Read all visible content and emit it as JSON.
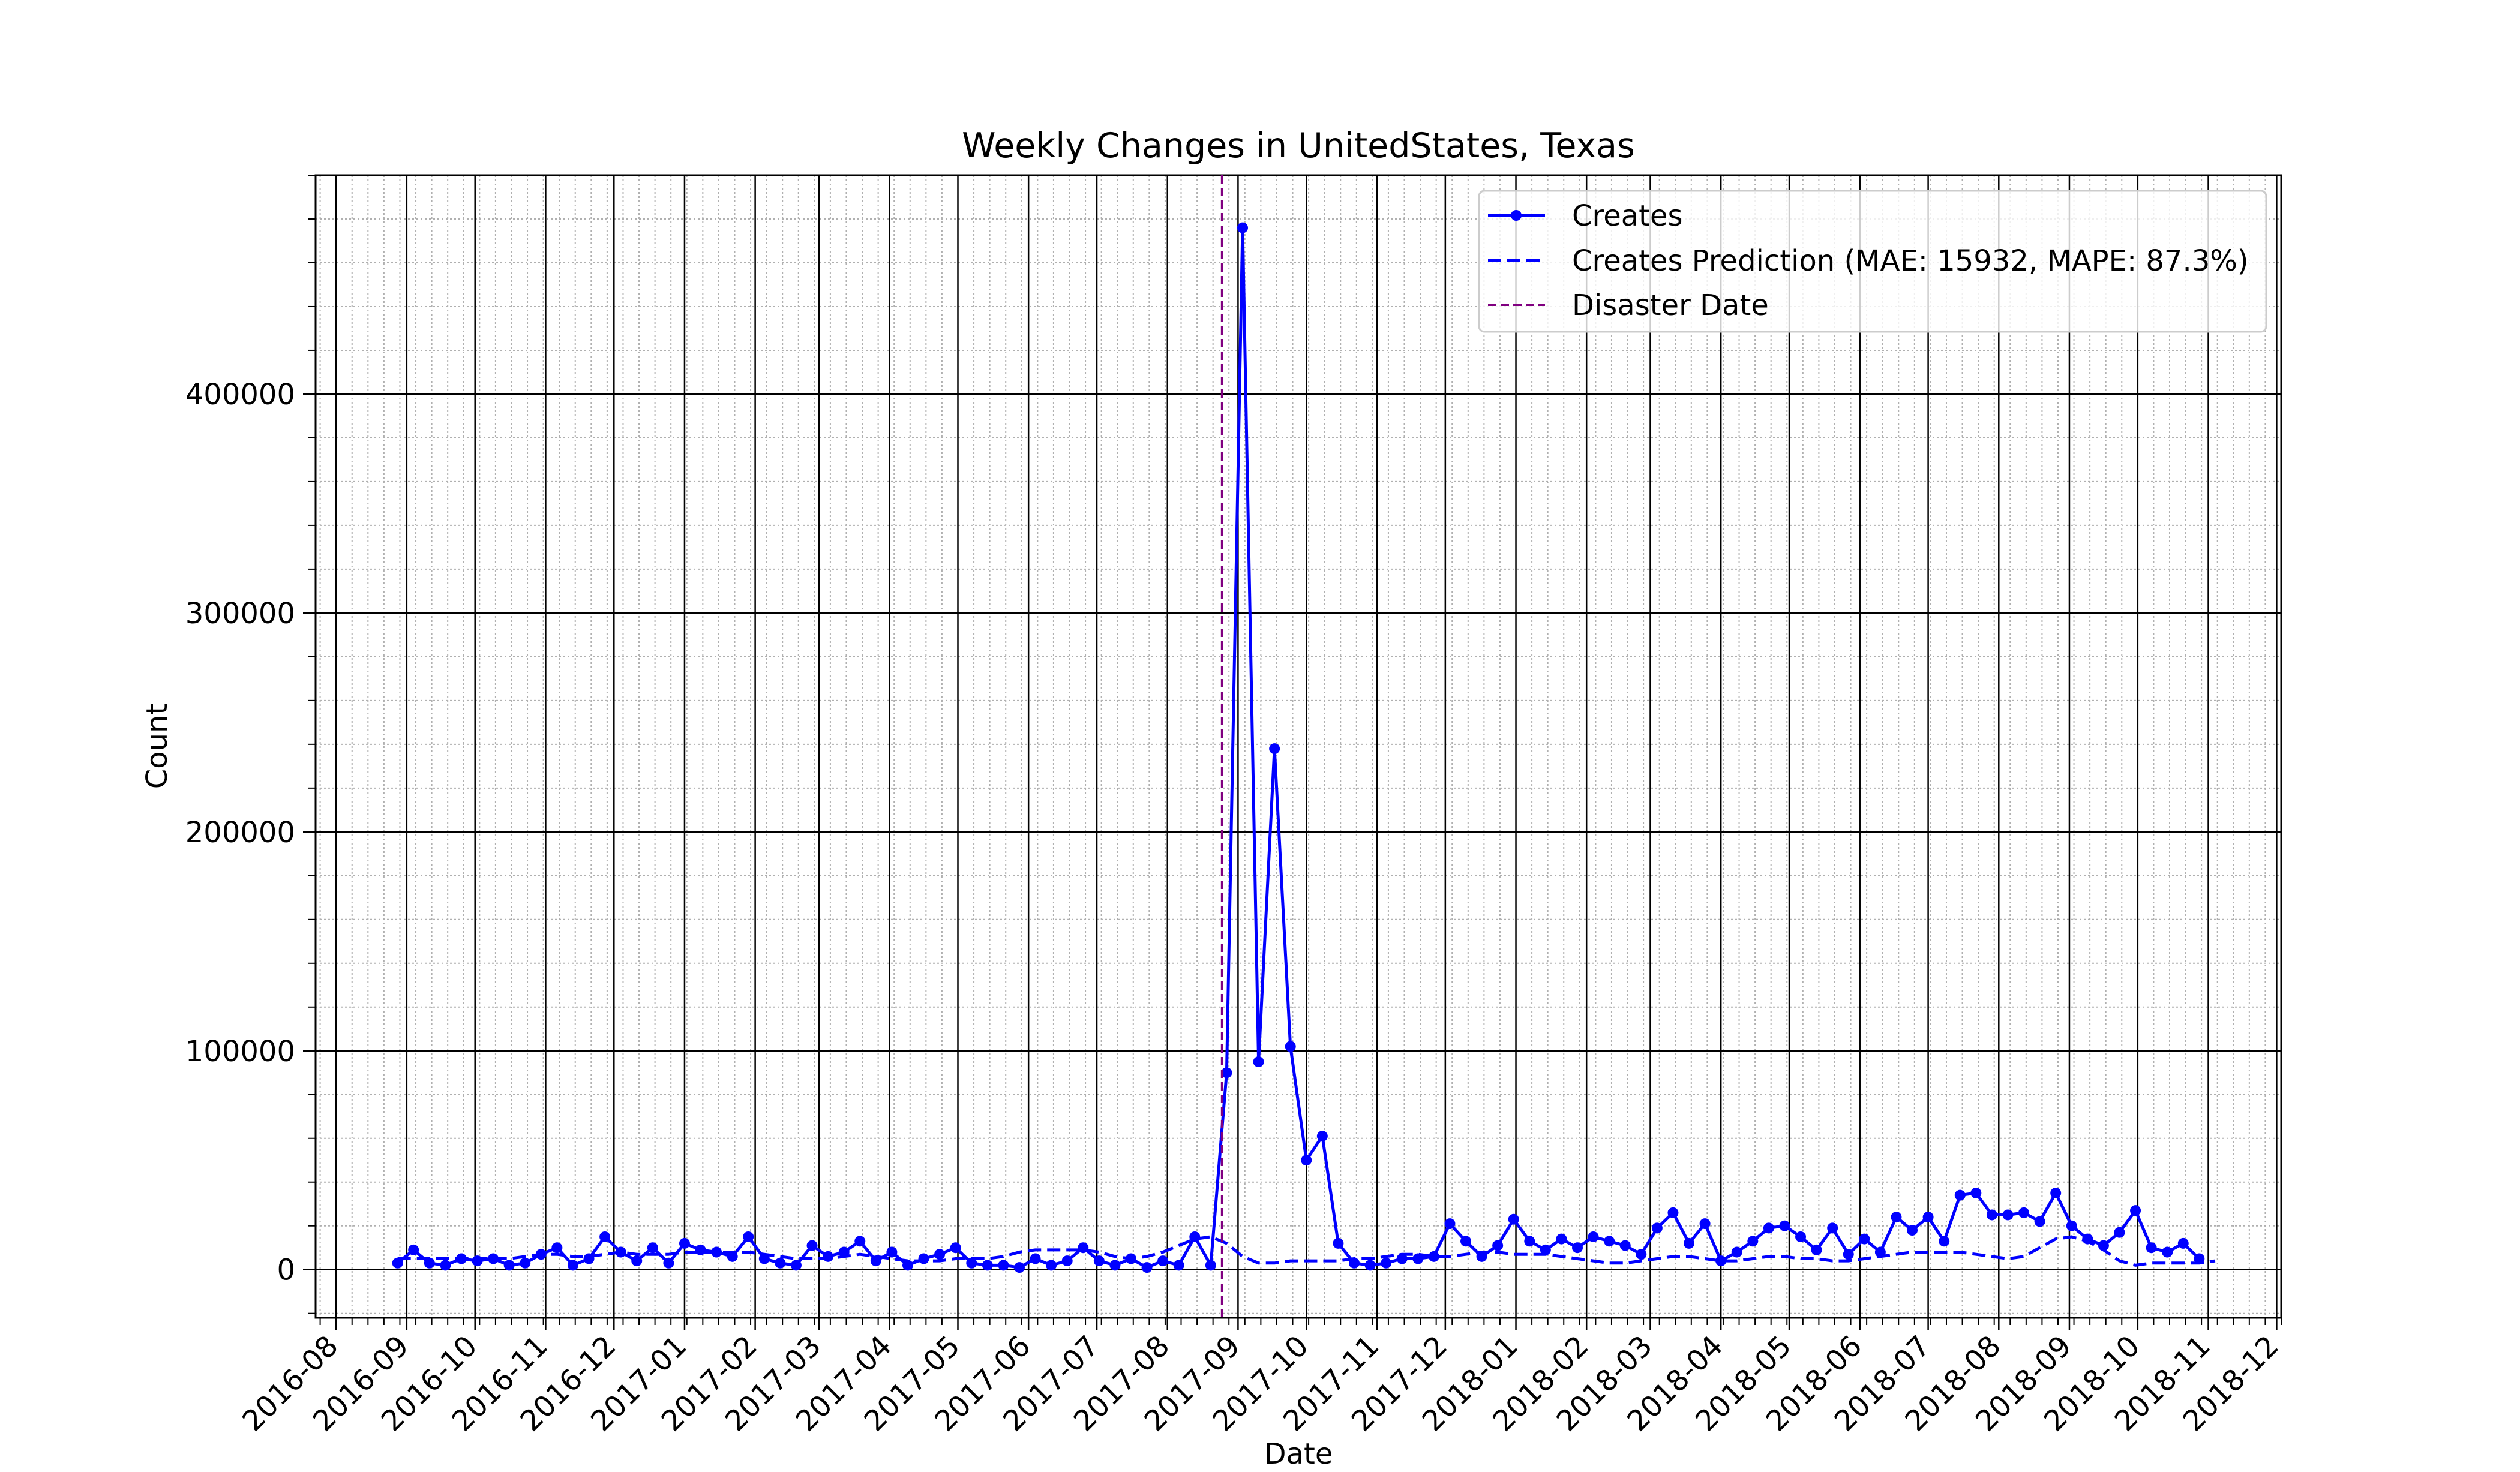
{
  "chart_data": {
    "type": "line",
    "title": "Weekly Changes in UnitedStates, Texas",
    "xlabel": "Date",
    "ylabel": "Count",
    "xlim": [
      "2016-07-23",
      "2018-12-03"
    ],
    "ylim": [
      -22000,
      500000
    ],
    "x_ticks": [
      "2016-08",
      "2016-09",
      "2016-10",
      "2016-11",
      "2016-12",
      "2017-01",
      "2017-02",
      "2017-03",
      "2017-04",
      "2017-05",
      "2017-06",
      "2017-07",
      "2017-08",
      "2017-09",
      "2017-10",
      "2017-11",
      "2017-12",
      "2018-01",
      "2018-02",
      "2018-03",
      "2018-04",
      "2018-05",
      "2018-06",
      "2018-07",
      "2018-08",
      "2018-09",
      "2018-10",
      "2018-11",
      "2018-12"
    ],
    "y_ticks": [
      0,
      100000,
      200000,
      300000,
      400000
    ],
    "grid": "major and minor",
    "legend_position": "top-right",
    "start_date": "2016-08-28",
    "week_step_days": 7,
    "series": [
      {
        "name": "Creates",
        "color": "#0000ff",
        "style": "solid line with dot markers",
        "values": [
          3000,
          9000,
          3000,
          2000,
          5000,
          4000,
          5000,
          2000,
          3000,
          7000,
          10000,
          2000,
          5000,
          15000,
          8000,
          4000,
          10000,
          3000,
          12000,
          9000,
          8000,
          6000,
          15000,
          5000,
          3000,
          2000,
          11000,
          6000,
          8000,
          13000,
          4000,
          8000,
          2000,
          5000,
          7000,
          10000,
          3000,
          2000,
          2000,
          1000,
          5000,
          2000,
          4000,
          10000,
          4000,
          2000,
          5000,
          1000,
          4000,
          2000,
          15000,
          2000,
          90000,
          476000,
          95000,
          238000,
          102000,
          50000,
          61000,
          12000,
          3000,
          2000,
          3000,
          5000,
          5000,
          6000,
          21000,
          13000,
          6000,
          11000,
          23000,
          13000,
          9000,
          14000,
          10000,
          15000,
          13000,
          11000,
          7000,
          19000,
          26000,
          12000,
          21000,
          4000,
          8000,
          13000,
          19000,
          20000,
          15000,
          9000,
          19000,
          7000,
          14000,
          8000,
          24000,
          18000,
          24000,
          13000,
          34000,
          35000,
          25000,
          25000,
          26000,
          22000,
          35000,
          20000,
          14000,
          11000,
          17000,
          27000,
          10000,
          8000,
          12000,
          5000
        ]
      },
      {
        "name": "Creates Prediction (MAE: 15932, MAPE: 87.3%)",
        "color": "#0000ff",
        "style": "dashed line",
        "values": [
          5000,
          5000,
          5000,
          5000,
          5000,
          5000,
          5000,
          5000,
          6000,
          7000,
          7000,
          6000,
          6000,
          7000,
          8000,
          7000,
          7000,
          7000,
          8000,
          8000,
          8000,
          8000,
          8000,
          7000,
          6000,
          5000,
          5000,
          5000,
          6000,
          7000,
          6000,
          5000,
          4000,
          4000,
          4000,
          5000,
          5000,
          5000,
          6000,
          8000,
          9000,
          9000,
          9000,
          9000,
          8000,
          6000,
          5000,
          6000,
          8000,
          11000,
          14000,
          15000,
          12000,
          6000,
          3000,
          3000,
          4000,
          4000,
          4000,
          4000,
          5000,
          5000,
          6000,
          7000,
          7000,
          6000,
          6000,
          7000,
          8000,
          8000,
          7000,
          7000,
          7000,
          6000,
          5000,
          4000,
          3000,
          3000,
          4000,
          5000,
          6000,
          6000,
          5000,
          4000,
          4000,
          5000,
          6000,
          6000,
          5000,
          5000,
          4000,
          4000,
          5000,
          6000,
          7000,
          8000,
          8000,
          8000,
          8000,
          7000,
          6000,
          5000,
          6000,
          10000,
          14000,
          15000,
          13000,
          9000,
          4000,
          2000,
          3000,
          3000,
          3000,
          3000,
          4000
        ]
      }
    ],
    "disaster_date": {
      "name": "Disaster Date",
      "date": "2017-08-25",
      "color": "#800080",
      "style": "dashed vertical line"
    }
  }
}
